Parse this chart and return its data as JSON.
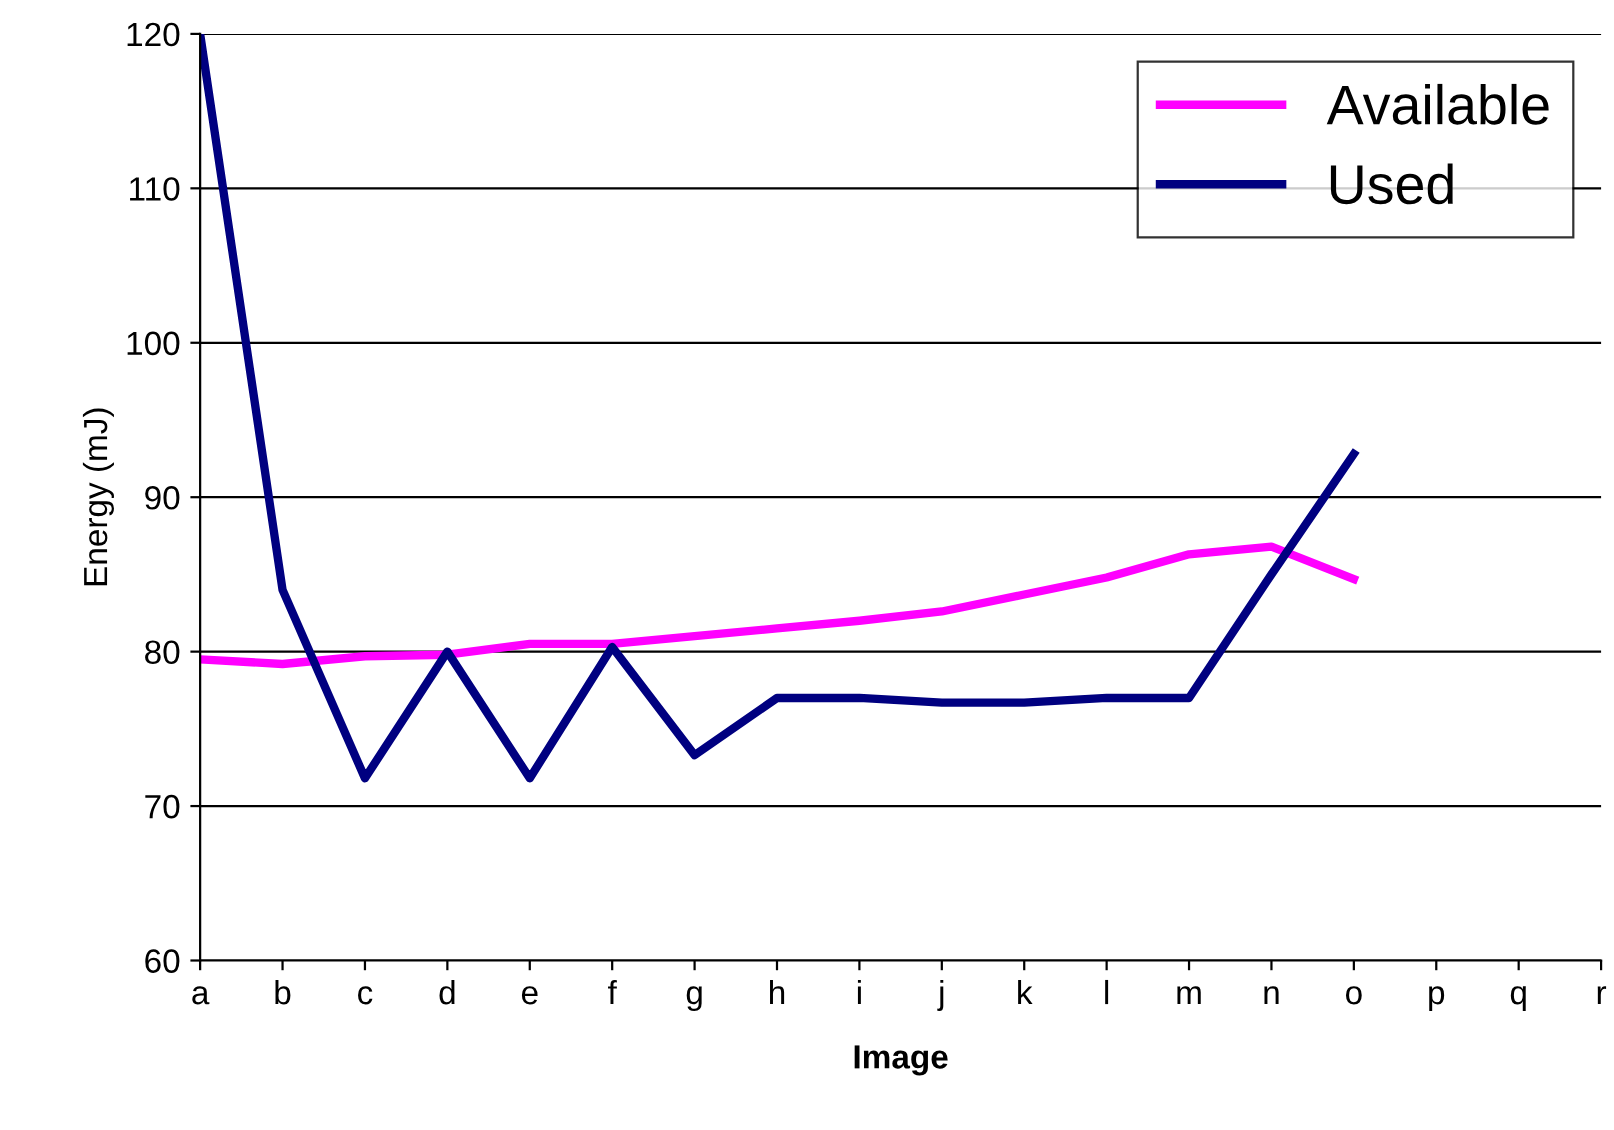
{
  "chart_data": {
    "type": "line",
    "xlabel": "Image",
    "ylabel": "Energy (mJ)",
    "categories": [
      "a",
      "b",
      "c",
      "d",
      "e",
      "f",
      "g",
      "h",
      "i",
      "j",
      "k",
      "l",
      "m",
      "n",
      "o",
      "p",
      "q",
      "r"
    ],
    "series": [
      {
        "name": "Available",
        "color": "#ff00ff",
        "values": [
          79.5,
          79.2,
          79.7,
          79.8,
          80.5,
          80.5,
          81,
          81.5,
          82,
          82.6,
          83.7,
          84.8,
          86.3,
          86.8,
          84.7,
          null,
          null,
          null
        ]
      },
      {
        "name": "Used",
        "color": "#000080",
        "values": [
          120,
          84,
          71.8,
          80,
          71.8,
          80.3,
          73.3,
          77,
          77,
          76.7,
          76.7,
          77,
          77,
          85,
          92.8,
          null,
          null,
          null
        ]
      }
    ],
    "ylim": [
      60,
      120
    ],
    "yticks": [
      60,
      70,
      80,
      90,
      100,
      110,
      120
    ],
    "grid": "y",
    "legend": "top right",
    "marker": "none",
    "line_style": "solid"
  }
}
